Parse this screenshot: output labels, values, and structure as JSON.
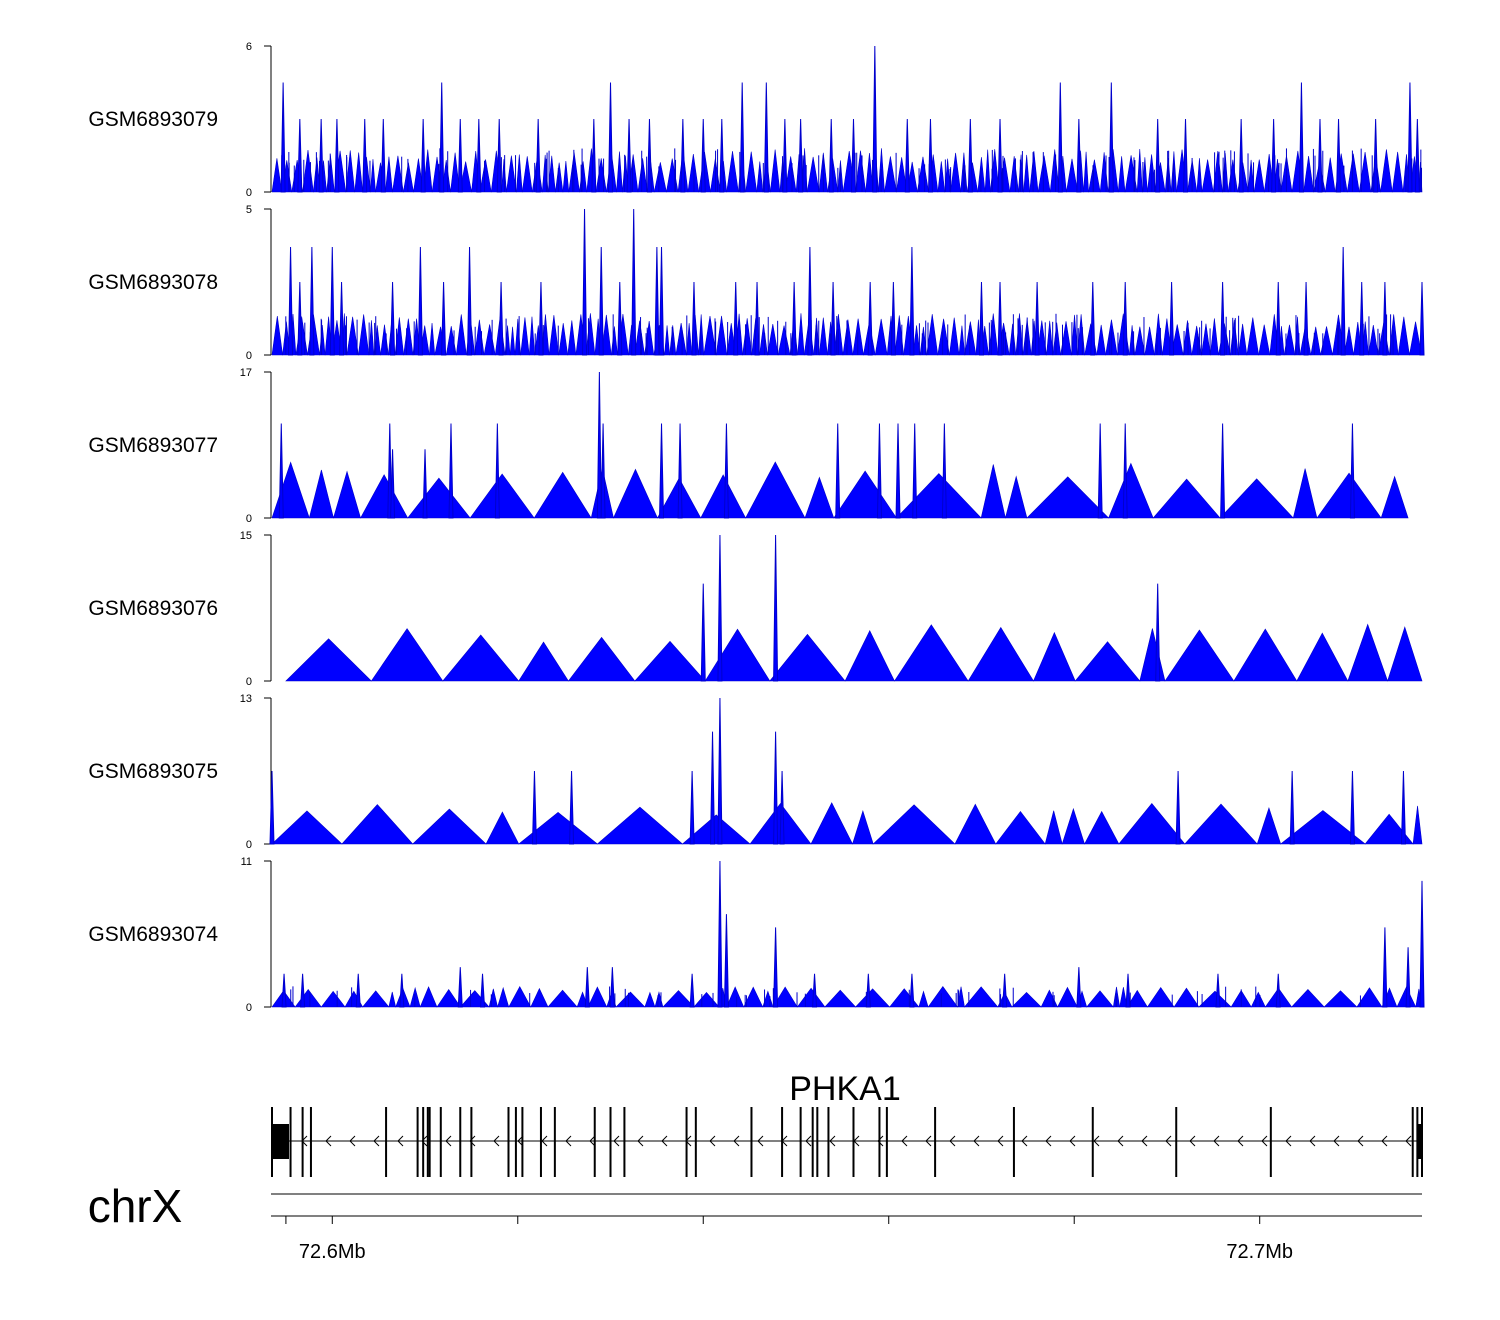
{
  "chart_data": {
    "type": "area",
    "title": "",
    "chromosome": "chrX",
    "xrange_mb": [
      72.5935,
      72.7175
    ],
    "color": "#0000ff",
    "tracks": [
      {
        "name": "GSM6893079",
        "ymax": 6,
        "ymin": 0,
        "peaks": [
          [
            72.5947,
            4.5
          ],
          [
            72.5965,
            3
          ],
          [
            72.5988,
            3
          ],
          [
            72.6005,
            3
          ],
          [
            72.6035,
            3
          ],
          [
            72.6055,
            3
          ],
          [
            72.6098,
            3
          ],
          [
            72.6118,
            4.5
          ],
          [
            72.6138,
            3
          ],
          [
            72.6158,
            3
          ],
          [
            72.618,
            3
          ],
          [
            72.6222,
            3
          ],
          [
            72.6282,
            3
          ],
          [
            72.63,
            4.5
          ],
          [
            72.632,
            3
          ],
          [
            72.6342,
            3
          ],
          [
            72.6378,
            3
          ],
          [
            72.64,
            3
          ],
          [
            72.642,
            3
          ],
          [
            72.6442,
            4.5
          ],
          [
            72.6468,
            4.5
          ],
          [
            72.6488,
            3
          ],
          [
            72.6505,
            3
          ],
          [
            72.6538,
            3
          ],
          [
            72.6562,
            3
          ],
          [
            72.6585,
            6
          ],
          [
            72.662,
            3
          ],
          [
            72.6645,
            3
          ],
          [
            72.6688,
            3
          ],
          [
            72.672,
            3
          ],
          [
            72.6785,
            4.5
          ],
          [
            72.6805,
            3
          ],
          [
            72.684,
            4.5
          ],
          [
            72.689,
            3
          ],
          [
            72.692,
            3
          ],
          [
            72.698,
            3
          ],
          [
            72.7015,
            3
          ],
          [
            72.7045,
            4.5
          ],
          [
            72.7065,
            3
          ],
          [
            72.7085,
            3
          ],
          [
            72.7125,
            3
          ],
          [
            72.7162,
            4.5
          ],
          [
            72.717,
            3
          ]
        ],
        "baseline": 1.5
      },
      {
        "name": "GSM6893078",
        "ymax": 5,
        "ymin": 0,
        "peaks": [
          [
            72.5955,
            3.7
          ],
          [
            72.5965,
            2.5
          ],
          [
            72.5978,
            3.7
          ],
          [
            72.6,
            3.7
          ],
          [
            72.601,
            2.5
          ],
          [
            72.6065,
            2.5
          ],
          [
            72.6095,
            3.7
          ],
          [
            72.612,
            2.5
          ],
          [
            72.6148,
            3.7
          ],
          [
            72.6182,
            2.5
          ],
          [
            72.6225,
            2.5
          ],
          [
            72.6272,
            5
          ],
          [
            72.629,
            3.7
          ],
          [
            72.631,
            2.5
          ],
          [
            72.6325,
            5
          ],
          [
            72.635,
            3.7
          ],
          [
            72.6355,
            3.7
          ],
          [
            72.639,
            2.5
          ],
          [
            72.6435,
            2.5
          ],
          [
            72.6458,
            2.5
          ],
          [
            72.6498,
            2.5
          ],
          [
            72.6515,
            3.7
          ],
          [
            72.654,
            2.5
          ],
          [
            72.658,
            2.5
          ],
          [
            72.6605,
            2.5
          ],
          [
            72.6625,
            3.7
          ],
          [
            72.67,
            2.5
          ],
          [
            72.672,
            2.5
          ],
          [
            72.676,
            2.5
          ],
          [
            72.682,
            2.5
          ],
          [
            72.6855,
            2.5
          ],
          [
            72.6905,
            2.5
          ],
          [
            72.696,
            2.5
          ],
          [
            72.702,
            2.5
          ],
          [
            72.705,
            2.5
          ],
          [
            72.709,
            3.7
          ],
          [
            72.711,
            2.5
          ],
          [
            72.7135,
            2.5
          ],
          [
            72.7175,
            2.5
          ]
        ],
        "baseline": 1.2
      },
      {
        "name": "GSM6893077",
        "ymax": 17,
        "ymin": 0,
        "peaks": [
          [
            72.5945,
            11
          ],
          [
            72.6062,
            11
          ],
          [
            72.6065,
            8
          ],
          [
            72.61,
            8
          ],
          [
            72.6128,
            11
          ],
          [
            72.6178,
            11
          ],
          [
            72.6288,
            17
          ],
          [
            72.6292,
            11
          ],
          [
            72.6355,
            11
          ],
          [
            72.6375,
            11
          ],
          [
            72.6425,
            11
          ],
          [
            72.6545,
            11
          ],
          [
            72.659,
            11
          ],
          [
            72.661,
            11
          ],
          [
            72.6628,
            11
          ],
          [
            72.666,
            11
          ],
          [
            72.6828,
            11
          ],
          [
            72.6855,
            11
          ],
          [
            72.696,
            11
          ],
          [
            72.71,
            11
          ]
        ],
        "baseline": 5.5
      },
      {
        "name": "GSM6893076",
        "ymax": 15,
        "ymin": 0,
        "peaks": [
          [
            72.64,
            10
          ],
          [
            72.6418,
            15
          ],
          [
            72.6478,
            15
          ],
          [
            72.689,
            10
          ]
        ],
        "baseline": 5
      },
      {
        "name": "GSM6893075",
        "ymax": 13,
        "ymin": 0,
        "peaks": [
          [
            72.5935,
            6.5
          ],
          [
            72.6218,
            6.5
          ],
          [
            72.6258,
            6.5
          ],
          [
            72.6388,
            6.5
          ],
          [
            72.641,
            10
          ],
          [
            72.6418,
            13
          ],
          [
            72.6478,
            10
          ],
          [
            72.6485,
            6.5
          ],
          [
            72.6912,
            6.5
          ],
          [
            72.7035,
            6.5
          ],
          [
            72.71,
            6.5
          ],
          [
            72.7155,
            6.5
          ]
        ],
        "baseline": 3.2
      },
      {
        "name": "GSM6893074",
        "ymax": 11,
        "ymin": 0,
        "peaks": [
          [
            72.5948,
            2.5
          ],
          [
            72.5968,
            2.5
          ],
          [
            72.6028,
            2.5
          ],
          [
            72.6075,
            2.5
          ],
          [
            72.6138,
            3
          ],
          [
            72.6162,
            2.5
          ],
          [
            72.6275,
            3
          ],
          [
            72.6302,
            3
          ],
          [
            72.6388,
            2.5
          ],
          [
            72.6418,
            11
          ],
          [
            72.6425,
            7
          ],
          [
            72.6478,
            6
          ],
          [
            72.652,
            2.5
          ],
          [
            72.6578,
            2.5
          ],
          [
            72.6625,
            2.5
          ],
          [
            72.6725,
            2.5
          ],
          [
            72.6805,
            3
          ],
          [
            72.6858,
            2.5
          ],
          [
            72.6955,
            2.5
          ],
          [
            72.702,
            2.5
          ],
          [
            72.7135,
            6
          ],
          [
            72.716,
            4.5
          ],
          [
            72.7175,
            9.5
          ]
        ],
        "baseline": 1.3
      }
    ],
    "gene": {
      "name": "PHKA1",
      "strand": "-",
      "start_mb": 72.5935,
      "end_mb": 72.7175,
      "exons_mb": [
        72.5935,
        72.5955,
        72.5968,
        72.5977,
        72.6058,
        72.6092,
        72.6098,
        72.6103,
        72.6105,
        72.6117,
        72.6138,
        72.615,
        72.619,
        72.6198,
        72.6205,
        72.6225,
        72.624,
        72.6283,
        72.63,
        72.6315,
        72.6382,
        72.6392,
        72.6452,
        72.6485,
        72.6505,
        72.6518,
        72.6523,
        72.6535,
        72.6562,
        72.659,
        72.6598,
        72.665,
        72.6735,
        72.682,
        72.691,
        72.7012,
        72.7165,
        72.717,
        72.7175
      ]
    },
    "x_axis": {
      "tick_labels": [
        "72.6Mb",
        "72.7Mb"
      ],
      "tick_values_mb": [
        72.6,
        72.7
      ],
      "minor_ticks_mb": [
        72.595,
        72.6,
        72.62,
        72.64,
        72.66,
        72.68,
        72.7
      ]
    }
  }
}
